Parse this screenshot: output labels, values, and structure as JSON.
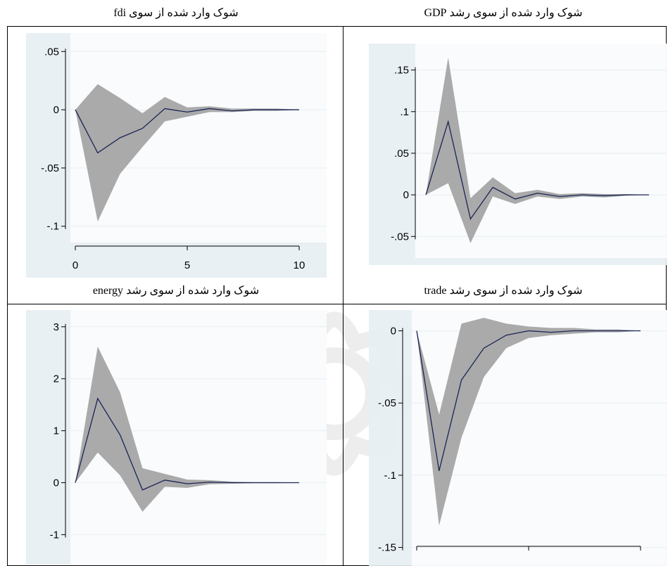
{
  "colors": {
    "plot_bg": "#e6eef3",
    "inner_bg": "#ffffff",
    "grid": "#e8eef2",
    "band": "#aaaaaa",
    "line": "#1a2456",
    "watermark": "#d9d9d9"
  },
  "captions": {
    "fdi": "شوک وارد شده از سوی fdi",
    "gdp": "شوک وارد شده از سوی رشد GDP",
    "energy": "شوک وارد شده از سوی رشد  energy",
    "trade": "شوک وارد شده از سوی رشد  trade"
  },
  "chart_data": [
    {
      "id": "fdi",
      "type": "area",
      "x": [
        0,
        1,
        2,
        3,
        4,
        5,
        6,
        7,
        8,
        9,
        10
      ],
      "series": [
        {
          "values": [
            0,
            -0.037,
            -0.024,
            -0.016,
            0.001,
            -0.002,
            0.001,
            -0.001,
            0,
            0,
            0
          ]
        },
        {
          "values": [
            0,
            0.022,
            0.01,
            -0.003,
            0.011,
            0.002,
            0.003,
            0.001,
            0.001,
            0.001,
            0
          ]
        },
        {
          "values": [
            0,
            -0.096,
            -0.055,
            -0.032,
            -0.01,
            -0.006,
            -0.002,
            -0.002,
            -0.001,
            -0.001,
            0
          ]
        }
      ],
      "yticks": [
        0.05,
        0,
        -0.05,
        -0.1
      ],
      "ytick_labels": [
        ".05",
        "0",
        "-.05",
        "-.1"
      ],
      "xticks": [
        0,
        5,
        10
      ],
      "xtick_labels": [
        "0",
        "5",
        "10"
      ],
      "xlim": [
        0,
        10
      ],
      "ylim": [
        -0.108,
        0.058
      ]
    },
    {
      "id": "gdp",
      "type": "area",
      "x": [
        0,
        1,
        2,
        3,
        4,
        5,
        6,
        7,
        8,
        9,
        10
      ],
      "series": [
        {
          "values": [
            0,
            0.088,
            -0.029,
            0.009,
            -0.005,
            0.002,
            -0.002,
            0,
            -0.001,
            0,
            0
          ]
        },
        {
          "values": [
            0,
            0.165,
            -0.004,
            0.021,
            0.002,
            0.006,
            0.001,
            0.002,
            0.001,
            0.001,
            0
          ]
        },
        {
          "values": [
            0,
            0.014,
            -0.058,
            -0.002,
            -0.011,
            -0.002,
            -0.005,
            -0.002,
            -0.003,
            -0.001,
            0
          ]
        }
      ],
      "yticks": [
        0.15,
        0.1,
        0.05,
        0,
        -0.05
      ],
      "ytick_labels": [
        ".15",
        ".1",
        ".05",
        "0",
        "-.05"
      ],
      "xticks": [],
      "xtick_labels": [],
      "xlim": [
        0,
        10
      ],
      "ylim": [
        -0.07,
        0.175
      ]
    },
    {
      "id": "energy",
      "type": "area",
      "x": [
        0,
        1,
        2,
        3,
        4,
        5,
        6,
        7,
        8,
        9,
        10
      ],
      "series": [
        {
          "values": [
            0,
            1.62,
            0.92,
            -0.14,
            0.05,
            -0.02,
            0.01,
            0,
            0,
            0,
            0
          ]
        },
        {
          "values": [
            0,
            2.62,
            1.74,
            0.28,
            0.17,
            0.06,
            0.05,
            0.02,
            0.01,
            0.01,
            0
          ]
        },
        {
          "values": [
            0,
            0.58,
            0.14,
            -0.56,
            -0.08,
            -0.1,
            -0.03,
            -0.02,
            -0.01,
            -0.01,
            0
          ]
        }
      ],
      "yticks": [
        3,
        2,
        1,
        0,
        -1
      ],
      "ytick_labels": [
        "3",
        "2",
        "1",
        "0",
        "-1"
      ],
      "xticks": [],
      "xtick_labels": [],
      "xlim": [
        0,
        10
      ],
      "ylim": [
        -1.4,
        3.2
      ]
    },
    {
      "id": "trade",
      "type": "area",
      "x": [
        0,
        1,
        2,
        3,
        4,
        5,
        6,
        7,
        8,
        9,
        10
      ],
      "series": [
        {
          "values": [
            0,
            -0.097,
            -0.034,
            -0.012,
            -0.003,
            0,
            -0.001,
            0,
            0,
            0,
            0
          ]
        },
        {
          "values": [
            0,
            -0.058,
            0.005,
            0.009,
            0.005,
            0.003,
            0.002,
            0.002,
            0.001,
            0.001,
            0
          ]
        },
        {
          "values": [
            0,
            -0.135,
            -0.074,
            -0.032,
            -0.012,
            -0.005,
            -0.003,
            -0.002,
            -0.001,
            -0.001,
            0
          ]
        }
      ],
      "yticks": [
        0,
        -0.05,
        -0.1,
        -0.15
      ],
      "ytick_labels": [
        "0",
        "-.05",
        "-.1",
        "-.15"
      ],
      "xticks": [
        0,
        5,
        10
      ],
      "xtick_labels": [],
      "xlim": [
        0,
        10
      ],
      "ylim": [
        -0.158,
        0.01
      ]
    }
  ]
}
